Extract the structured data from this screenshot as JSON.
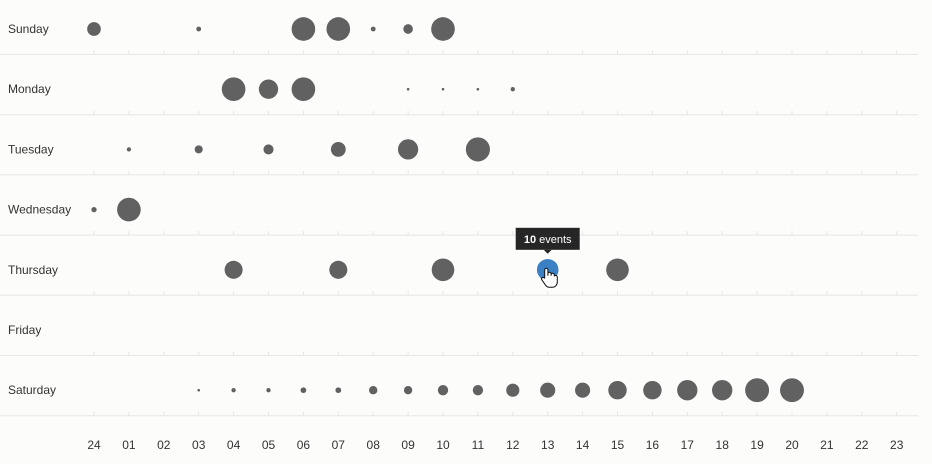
{
  "chart_data": {
    "type": "scatter",
    "title": "",
    "xlabel": "",
    "ylabel": "",
    "grid": false,
    "hours": [
      "24",
      "01",
      "02",
      "03",
      "04",
      "05",
      "06",
      "07",
      "08",
      "09",
      "10",
      "11",
      "12",
      "13",
      "14",
      "15",
      "16",
      "17",
      "18",
      "19",
      "20",
      "21",
      "22",
      "23"
    ],
    "days": [
      "Sunday",
      "Monday",
      "Tuesday",
      "Wednesday",
      "Thursday",
      "Friday",
      "Saturday"
    ],
    "max_value": 22,
    "series": [
      {
        "day": "Sunday",
        "points": [
          {
            "hour": "24",
            "value": 4
          },
          {
            "hour": "03",
            "value": 0.5
          },
          {
            "hour": "06",
            "value": 12
          },
          {
            "hour": "07",
            "value": 12
          },
          {
            "hour": "08",
            "value": 0.5
          },
          {
            "hour": "09",
            "value": 2
          },
          {
            "hour": "10",
            "value": 12
          }
        ]
      },
      {
        "day": "Monday",
        "points": [
          {
            "hour": "04",
            "value": 12
          },
          {
            "hour": "05",
            "value": 8
          },
          {
            "hour": "06",
            "value": 12
          },
          {
            "hour": "09",
            "value": 0.1
          },
          {
            "hour": "10",
            "value": 0.1
          },
          {
            "hour": "11",
            "value": 0.1
          },
          {
            "hour": "12",
            "value": 0.4
          }
        ]
      },
      {
        "day": "Tuesday",
        "points": [
          {
            "hour": "01",
            "value": 0.4
          },
          {
            "hour": "03",
            "value": 1.4
          },
          {
            "hour": "05",
            "value": 2.2
          },
          {
            "hour": "07",
            "value": 4.7
          },
          {
            "hour": "09",
            "value": 8.8
          },
          {
            "hour": "11",
            "value": 12.5
          }
        ]
      },
      {
        "day": "Wednesday",
        "points": [
          {
            "hour": "24",
            "value": 0.6
          },
          {
            "hour": "01",
            "value": 12
          }
        ]
      },
      {
        "day": "Thursday",
        "points": [
          {
            "hour": "04",
            "value": 7
          },
          {
            "hour": "07",
            "value": 7
          },
          {
            "hour": "10",
            "value": 11
          },
          {
            "hour": "13",
            "value": 10
          },
          {
            "hour": "15",
            "value": 11
          }
        ]
      },
      {
        "day": "Friday",
        "points": []
      },
      {
        "day": "Saturday",
        "points": [
          {
            "hour": "03",
            "value": 0.1
          },
          {
            "hour": "04",
            "value": 0.4
          },
          {
            "hour": "05",
            "value": 0.4
          },
          {
            "hour": "06",
            "value": 0.7
          },
          {
            "hour": "07",
            "value": 0.7
          },
          {
            "hour": "08",
            "value": 1.5
          },
          {
            "hour": "09",
            "value": 1.5
          },
          {
            "hour": "10",
            "value": 2.3
          },
          {
            "hour": "11",
            "value": 2.3
          },
          {
            "hour": "12",
            "value": 3.7
          },
          {
            "hour": "13",
            "value": 4.9
          },
          {
            "hour": "14",
            "value": 4.9
          },
          {
            "hour": "15",
            "value": 7.3
          },
          {
            "hour": "16",
            "value": 7.3
          },
          {
            "hour": "17",
            "value": 8.9
          },
          {
            "hour": "18",
            "value": 8.9
          },
          {
            "hour": "19",
            "value": 12.3
          },
          {
            "hour": "20",
            "value": 12.3
          }
        ]
      }
    ],
    "active_point": {
      "day": "Thursday",
      "hour": "13"
    },
    "tooltip": {
      "count": "10",
      "label": "events"
    },
    "colors": {
      "bubble": "#616161",
      "active": "#3b7fc4",
      "tooltip": "#262626"
    }
  }
}
